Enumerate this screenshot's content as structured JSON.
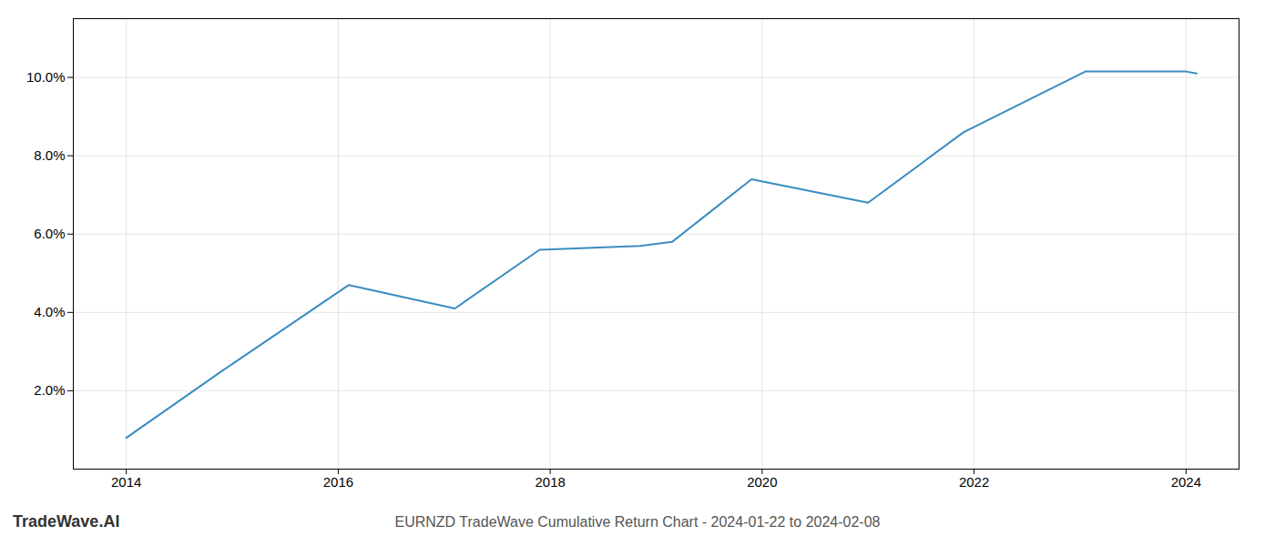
{
  "chart_data": {
    "type": "line",
    "title": "EURNZD TradeWave Cumulative Return Chart - 2024-01-22 to 2024-02-08",
    "annotations": [
      "TradeWave.AI"
    ],
    "x": [
      2014.0,
      2014.9,
      2016.1,
      2017.1,
      2017.9,
      2018.85,
      2019.15,
      2019.9,
      2021.0,
      2021.9,
      2023.05,
      2024.0,
      2024.1
    ],
    "values": [
      0.008,
      0.025,
      0.047,
      0.041,
      0.056,
      0.057,
      0.058,
      0.074,
      0.068,
      0.086,
      0.1015,
      0.1015,
      0.101
    ],
    "color": "#3a8cc1",
    "xlim": [
      2013.5,
      2024.5
    ],
    "ylim": [
      0.0,
      0.115
    ],
    "xticks": [
      2014,
      2016,
      2018,
      2020,
      2022,
      2024
    ],
    "yticks": [
      {
        "value": 0.02,
        "label": "2.0%"
      },
      {
        "value": 0.04,
        "label": "4.0%"
      },
      {
        "value": 0.06,
        "label": "6.0%"
      },
      {
        "value": 0.08,
        "label": "8.0%"
      },
      {
        "value": 0.1,
        "label": "10.0%"
      }
    ],
    "grid": true
  }
}
